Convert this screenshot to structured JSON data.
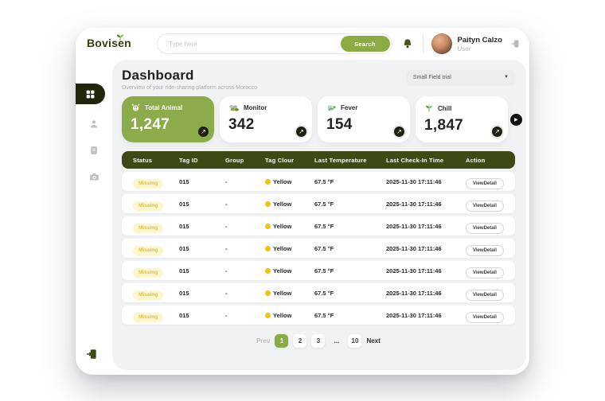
{
  "brand": {
    "name": "Bovisen"
  },
  "header": {
    "search_placeholder": "Type here",
    "search_button": "Search",
    "user": {
      "name": "Paityn Calzo",
      "role": "User"
    }
  },
  "sidebar": {
    "items": [
      {
        "name": "dashboard",
        "icon": "dashboard-icon",
        "active": true
      },
      {
        "name": "users",
        "icon": "user-icon",
        "active": false
      },
      {
        "name": "records",
        "icon": "document-icon",
        "active": false
      },
      {
        "name": "camera",
        "icon": "camera-icon",
        "active": false
      }
    ],
    "bottom_icon": "logout-door-icon"
  },
  "page": {
    "title": "Dashboard",
    "subtitle": "Overview of your ride-sharing platform across Morocco",
    "filter_value": "Small Field trial"
  },
  "stats": [
    {
      "label": "Total Animal",
      "value": "1,247",
      "icon": "cow-icon",
      "highlight": true
    },
    {
      "label": "Monitor",
      "value": "342",
      "icon": "herd-icon",
      "highlight": false
    },
    {
      "label": "Fever",
      "value": "154",
      "icon": "thermometer-icon",
      "highlight": false
    },
    {
      "label": "Chill",
      "value": "1,847",
      "icon": "sprout-icon",
      "highlight": false
    }
  ],
  "table": {
    "columns": [
      "Status",
      "Tag ID",
      "Group",
      "Tag Clour",
      "Last Temperature",
      "Last Check-In Time",
      "Action"
    ],
    "rows": [
      {
        "status": "Missing",
        "tag_id": "015",
        "group": "-",
        "tag_colour": "Yellow",
        "last_temperature": "67.5 °F",
        "last_check_in": "2025-11-30 17:11:46",
        "action": "ViewDetail"
      },
      {
        "status": "Missing",
        "tag_id": "015",
        "group": "-",
        "tag_colour": "Yellow",
        "last_temperature": "67.5 °F",
        "last_check_in": "2025-11-30 17:11:46",
        "action": "ViewDetail"
      },
      {
        "status": "Missing",
        "tag_id": "015",
        "group": "-",
        "tag_colour": "Yellow",
        "last_temperature": "67.5 °F",
        "last_check_in": "2025-11-30 17:11:46",
        "action": "ViewDetail"
      },
      {
        "status": "Missing",
        "tag_id": "015",
        "group": "-",
        "tag_colour": "Yellow",
        "last_temperature": "67.5 °F",
        "last_check_in": "2025-11-30 17:11:46",
        "action": "ViewDetail"
      },
      {
        "status": "Missing",
        "tag_id": "015",
        "group": "-",
        "tag_colour": "Yellow",
        "last_temperature": "67.5 °F",
        "last_check_in": "2025-11-30 17:11:46",
        "action": "ViewDetail"
      },
      {
        "status": "Missing",
        "tag_id": "015",
        "group": "-",
        "tag_colour": "Yellow",
        "last_temperature": "67.5 °F",
        "last_check_in": "2025-11-30 17:11:46",
        "action": "ViewDetail"
      },
      {
        "status": "Missing",
        "tag_id": "015",
        "group": "-",
        "tag_colour": "Yellow",
        "last_temperature": "67.5 °F",
        "last_check_in": "2025-11-30 17:11:46",
        "action": "ViewDetail"
      }
    ]
  },
  "pagination": {
    "prev": "Prev",
    "pages": [
      "1",
      "2",
      "3",
      "...",
      "10"
    ],
    "active": "1",
    "next": "Next"
  },
  "colors": {
    "accent_green": "#8cab45",
    "dark_olive": "#3d4a16",
    "sidebar_pill": "#1f260c",
    "badge_bg": "#fcf6cd",
    "badge_text": "#ddc13e",
    "dot_yellow": "#f2c40f",
    "content_bg": "#f1f2f4"
  }
}
